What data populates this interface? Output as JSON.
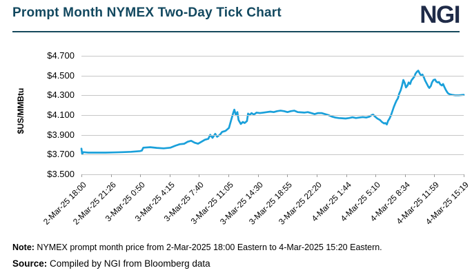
{
  "header": {
    "title": "Prompt Month NYMEX Two-Day Tick Chart",
    "logo": "NGI"
  },
  "colors": {
    "title": "#12485f",
    "logo": "#1f2b48",
    "divider": "#15485c",
    "grid": "#c6c6c6",
    "tick": "#9a9a9a",
    "line": "#1aa0da",
    "text": "#000000"
  },
  "chart_data": {
    "type": "line",
    "title": "Prompt Month NYMEX Two-Day Tick Chart",
    "ylabel": "$US/MMBtu",
    "xlabel": "",
    "ylim": [
      3.5,
      4.7
    ],
    "grid": "horizontal",
    "legend": "none",
    "y_ticks": [
      "$4.700",
      "$4.500",
      "$4.300",
      "$4.100",
      "$3.900",
      "$3.700",
      "$3.500"
    ],
    "x_ticks": [
      "2-Mar-25 18:00",
      "2-Mar-25 21:26",
      "3-Mar-25 0:50",
      "3-Mar-25 4:15",
      "3-Mar-25 7:40",
      "3-Mar-25 11:05",
      "3-Mar-25 14:30",
      "3-Mar-25 18:55",
      "3-Mar-25 22:20",
      "4-Mar-25 1:44",
      "4-Mar-25 5:10",
      "4-Mar-25 8:34",
      "4-Mar-25 11:59",
      "4-Mar-25 15:19"
    ],
    "series": [
      {
        "name": "NYMEX prompt month price ($US/MMBtu)",
        "x_unit": "fraction of time axis from 2-Mar-25 18:00 to 4-Mar-25 15:19",
        "points": [
          [
            0.0,
            3.76
          ],
          [
            0.002,
            3.705
          ],
          [
            0.005,
            3.725
          ],
          [
            0.018,
            3.72
          ],
          [
            0.04,
            3.72
          ],
          [
            0.063,
            3.72
          ],
          [
            0.085,
            3.722
          ],
          [
            0.108,
            3.725
          ],
          [
            0.13,
            3.728
          ],
          [
            0.153,
            3.735
          ],
          [
            0.158,
            3.74
          ],
          [
            0.162,
            3.77
          ],
          [
            0.18,
            3.775
          ],
          [
            0.197,
            3.768
          ],
          [
            0.215,
            3.763
          ],
          [
            0.233,
            3.77
          ],
          [
            0.246,
            3.79
          ],
          [
            0.257,
            3.805
          ],
          [
            0.269,
            3.81
          ],
          [
            0.278,
            3.83
          ],
          [
            0.287,
            3.84
          ],
          [
            0.296,
            3.82
          ],
          [
            0.305,
            3.81
          ],
          [
            0.314,
            3.83
          ],
          [
            0.323,
            3.85
          ],
          [
            0.332,
            3.86
          ],
          [
            0.337,
            3.9
          ],
          [
            0.343,
            3.87
          ],
          [
            0.35,
            3.91
          ],
          [
            0.355,
            3.88
          ],
          [
            0.363,
            3.905
          ],
          [
            0.368,
            3.93
          ],
          [
            0.377,
            3.94
          ],
          [
            0.386,
            3.97
          ],
          [
            0.391,
            4.04
          ],
          [
            0.397,
            4.12
          ],
          [
            0.4,
            4.155
          ],
          [
            0.404,
            4.1
          ],
          [
            0.408,
            4.13
          ],
          [
            0.411,
            4.05
          ],
          [
            0.417,
            4.01
          ],
          [
            0.422,
            4.03
          ],
          [
            0.427,
            4.02
          ],
          [
            0.433,
            4.04
          ],
          [
            0.436,
            4.115
          ],
          [
            0.44,
            4.1
          ],
          [
            0.445,
            4.12
          ],
          [
            0.451,
            4.105
          ],
          [
            0.458,
            4.125
          ],
          [
            0.467,
            4.12
          ],
          [
            0.476,
            4.125
          ],
          [
            0.485,
            4.13
          ],
          [
            0.494,
            4.135
          ],
          [
            0.503,
            4.13
          ],
          [
            0.512,
            4.14
          ],
          [
            0.521,
            4.145
          ],
          [
            0.53,
            4.14
          ],
          [
            0.539,
            4.13
          ],
          [
            0.548,
            4.14
          ],
          [
            0.557,
            4.145
          ],
          [
            0.566,
            4.13
          ],
          [
            0.574,
            4.128
          ],
          [
            0.583,
            4.125
          ],
          [
            0.592,
            4.13
          ],
          [
            0.601,
            4.12
          ],
          [
            0.61,
            4.11
          ],
          [
            0.619,
            4.12
          ],
          [
            0.628,
            4.12
          ],
          [
            0.637,
            4.11
          ],
          [
            0.646,
            4.1
          ],
          [
            0.655,
            4.085
          ],
          [
            0.664,
            4.075
          ],
          [
            0.673,
            4.07
          ],
          [
            0.682,
            4.068
          ],
          [
            0.691,
            4.065
          ],
          [
            0.7,
            4.07
          ],
          [
            0.709,
            4.078
          ],
          [
            0.718,
            4.07
          ],
          [
            0.727,
            4.075
          ],
          [
            0.736,
            4.08
          ],
          [
            0.745,
            4.075
          ],
          [
            0.754,
            4.085
          ],
          [
            0.759,
            4.1
          ],
          [
            0.763,
            4.105
          ],
          [
            0.768,
            4.085
          ],
          [
            0.774,
            4.065
          ],
          [
            0.781,
            4.05
          ],
          [
            0.786,
            4.03
          ],
          [
            0.792,
            4.015
          ],
          [
            0.795,
            4.02
          ],
          [
            0.799,
            4.005
          ],
          [
            0.802,
            4.04
          ],
          [
            0.806,
            4.065
          ],
          [
            0.81,
            4.1
          ],
          [
            0.813,
            4.135
          ],
          [
            0.817,
            4.18
          ],
          [
            0.82,
            4.21
          ],
          [
            0.824,
            4.245
          ],
          [
            0.828,
            4.27
          ],
          [
            0.831,
            4.315
          ],
          [
            0.835,
            4.35
          ],
          [
            0.838,
            4.39
          ],
          [
            0.842,
            4.455
          ],
          [
            0.846,
            4.42
          ],
          [
            0.849,
            4.38
          ],
          [
            0.853,
            4.4
          ],
          [
            0.856,
            4.43
          ],
          [
            0.86,
            4.415
          ],
          [
            0.863,
            4.45
          ],
          [
            0.867,
            4.47
          ],
          [
            0.871,
            4.49
          ],
          [
            0.874,
            4.52
          ],
          [
            0.878,
            4.54
          ],
          [
            0.881,
            4.55
          ],
          [
            0.885,
            4.52
          ],
          [
            0.889,
            4.5
          ],
          [
            0.892,
            4.51
          ],
          [
            0.896,
            4.48
          ],
          [
            0.899,
            4.45
          ],
          [
            0.903,
            4.42
          ],
          [
            0.907,
            4.39
          ],
          [
            0.91,
            4.375
          ],
          [
            0.914,
            4.395
          ],
          [
            0.917,
            4.43
          ],
          [
            0.921,
            4.455
          ],
          [
            0.925,
            4.46
          ],
          [
            0.928,
            4.44
          ],
          [
            0.932,
            4.43
          ],
          [
            0.935,
            4.435
          ],
          [
            0.939,
            4.41
          ],
          [
            0.943,
            4.4
          ],
          [
            0.946,
            4.415
          ],
          [
            0.95,
            4.38
          ],
          [
            0.953,
            4.355
          ],
          [
            0.957,
            4.33
          ],
          [
            0.96,
            4.317
          ],
          [
            0.964,
            4.31
          ],
          [
            0.969,
            4.305
          ],
          [
            0.978,
            4.3
          ],
          [
            0.987,
            4.3
          ],
          [
            1.0,
            4.305
          ]
        ]
      }
    ]
  },
  "footer": {
    "note_label": "Note:",
    "note_text": " NYMEX prompt month price from 2-Mar-2025 18:00 Eastern to 4-Mar-2025 15:20 Eastern.",
    "source_label": "Source:",
    "source_text": " Compiled by NGI from Bloomberg data"
  }
}
